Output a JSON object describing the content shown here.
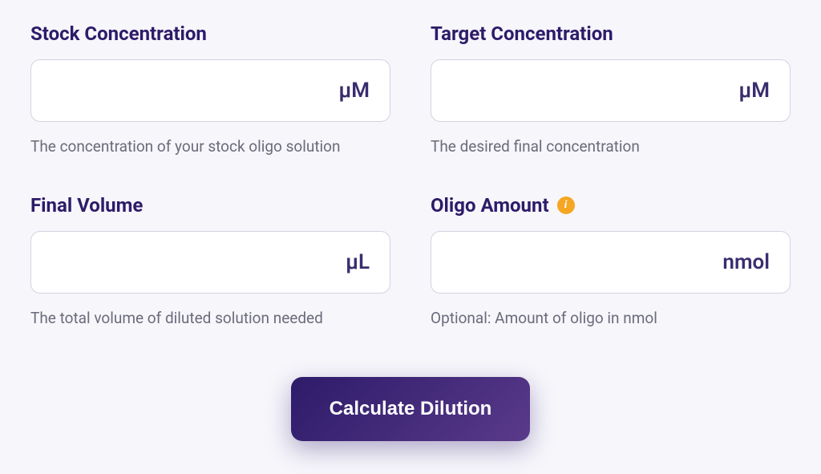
{
  "fields": {
    "stock_concentration": {
      "label": "Stock Concentration",
      "unit": "μM",
      "help": "The concentration of your stock oligo solution",
      "value": ""
    },
    "target_concentration": {
      "label": "Target Concentration",
      "unit": "μM",
      "help": "The desired final concentration",
      "value": ""
    },
    "final_volume": {
      "label": "Final Volume",
      "unit": "μL",
      "help": "The total volume of diluted solution needed",
      "value": ""
    },
    "oligo_amount": {
      "label": "Oligo Amount",
      "unit": "nmol",
      "help": "Optional: Amount of oligo in nmol",
      "value": "",
      "info_icon": "i"
    }
  },
  "button": {
    "calculate_label": "Calculate Dilution"
  }
}
